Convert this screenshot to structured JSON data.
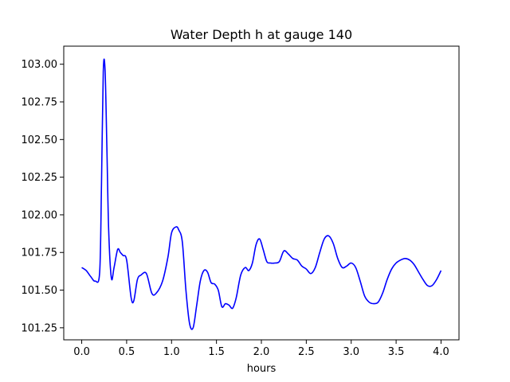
{
  "chart_data": {
    "type": "line",
    "title": "Water Depth h at gauge 140",
    "xlabel": "hours",
    "ylabel": "",
    "xlim": [
      -0.2,
      4.2
    ],
    "ylim": [
      101.17,
      103.12
    ],
    "xticks": [
      0.0,
      0.5,
      1.0,
      1.5,
      2.0,
      2.5,
      3.0,
      3.5,
      4.0
    ],
    "xtick_labels": [
      "0.0",
      "0.5",
      "1.0",
      "1.5",
      "2.0",
      "2.5",
      "3.0",
      "3.5",
      "4.0"
    ],
    "yticks": [
      101.25,
      101.5,
      101.75,
      102.0,
      102.25,
      102.5,
      102.75,
      103.0
    ],
    "ytick_labels": [
      "101.25",
      "101.50",
      "101.75",
      "102.00",
      "102.25",
      "102.50",
      "102.75",
      "103.00"
    ],
    "grid": false,
    "series": [
      {
        "color": "#0000ff",
        "x": [
          0.0,
          0.05,
          0.1,
          0.15,
          0.2,
          0.22,
          0.24,
          0.26,
          0.28,
          0.3,
          0.33,
          0.36,
          0.4,
          0.43,
          0.46,
          0.5,
          0.55,
          0.58,
          0.62,
          0.66,
          0.72,
          0.78,
          0.83,
          0.9,
          0.96,
          1.0,
          1.05,
          1.08,
          1.12,
          1.16,
          1.2,
          1.24,
          1.28,
          1.32,
          1.36,
          1.4,
          1.44,
          1.48,
          1.52,
          1.56,
          1.6,
          1.64,
          1.68,
          1.72,
          1.77,
          1.82,
          1.86,
          1.9,
          1.94,
          1.98,
          2.02,
          2.06,
          2.1,
          2.15,
          2.2,
          2.25,
          2.3,
          2.35,
          2.4,
          2.45,
          2.5,
          2.55,
          2.6,
          2.65,
          2.7,
          2.75,
          2.8,
          2.85,
          2.9,
          2.95,
          3.0,
          3.05,
          3.1,
          3.15,
          3.2,
          3.25,
          3.3,
          3.35,
          3.4,
          3.45,
          3.5,
          3.55,
          3.6,
          3.65,
          3.7,
          3.75,
          3.8,
          3.85,
          3.9,
          3.95,
          4.0
        ],
        "y": [
          101.65,
          101.63,
          101.59,
          101.56,
          101.62,
          102.2,
          102.95,
          102.96,
          102.45,
          101.9,
          101.58,
          101.65,
          101.77,
          101.75,
          101.73,
          101.7,
          101.45,
          101.43,
          101.57,
          101.6,
          101.61,
          101.48,
          101.48,
          101.56,
          101.72,
          101.88,
          101.92,
          101.9,
          101.82,
          101.5,
          101.28,
          101.25,
          101.4,
          101.56,
          101.63,
          101.62,
          101.55,
          101.54,
          101.5,
          101.39,
          101.41,
          101.4,
          101.38,
          101.45,
          101.6,
          101.65,
          101.63,
          101.68,
          101.8,
          101.84,
          101.77,
          101.69,
          101.68,
          101.68,
          101.69,
          101.76,
          101.74,
          101.71,
          101.7,
          101.66,
          101.64,
          101.61,
          101.65,
          101.75,
          101.84,
          101.86,
          101.81,
          101.71,
          101.65,
          101.66,
          101.68,
          101.65,
          101.56,
          101.46,
          101.42,
          101.41,
          101.42,
          101.48,
          101.57,
          101.64,
          101.68,
          101.7,
          101.71,
          101.7,
          101.67,
          101.62,
          101.57,
          101.53,
          101.53,
          101.57,
          101.63
        ]
      }
    ]
  }
}
